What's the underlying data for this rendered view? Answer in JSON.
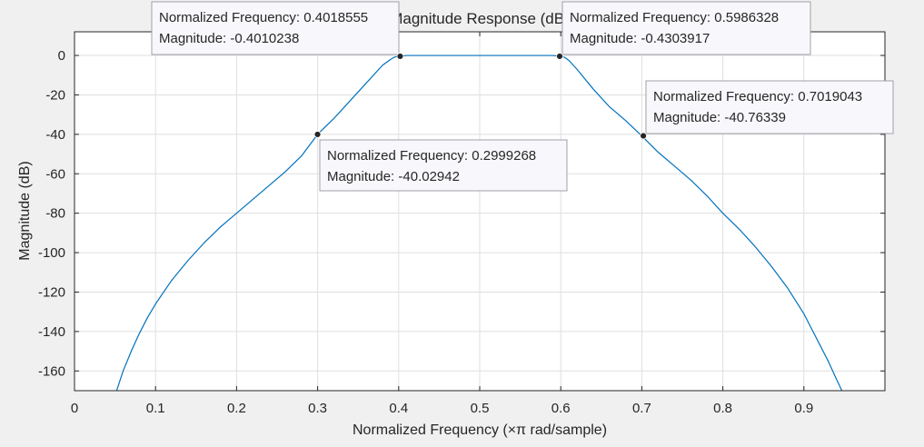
{
  "chart_data": {
    "type": "line",
    "title": "Magnitude Response (dB)",
    "xlabel": "Normalized Frequency (×π rad/sample)",
    "ylabel": "Magnitude (dB)",
    "xlim": [
      0,
      1
    ],
    "ylim": [
      -170,
      12
    ],
    "xticks": [
      0,
      0.1,
      0.2,
      0.3,
      0.4,
      0.5,
      0.6,
      0.7,
      0.8,
      0.9
    ],
    "xtick_labels": [
      "0",
      "0.1",
      "0.2",
      "0.3",
      "0.4",
      "0.5",
      "0.6",
      "0.7",
      "0.8",
      "0.9"
    ],
    "yticks": [
      0,
      -20,
      -40,
      -60,
      -80,
      -100,
      -120,
      -140,
      -160
    ],
    "ytick_labels": [
      "0",
      "-20",
      "-40",
      "-60",
      "-80",
      "-100",
      "-120",
      "-140",
      "-160"
    ],
    "grid": true,
    "line_color": "#0072bd",
    "series": [
      {
        "x": [
          0.052,
          0.06,
          0.07,
          0.08,
          0.09,
          0.1,
          0.12,
          0.14,
          0.16,
          0.18,
          0.2,
          0.22,
          0.24,
          0.26,
          0.28,
          0.3,
          0.32,
          0.34,
          0.36,
          0.38,
          0.39,
          0.395,
          0.4,
          0.41,
          0.45,
          0.5,
          0.55,
          0.59,
          0.6,
          0.605,
          0.61,
          0.62,
          0.64,
          0.66,
          0.68,
          0.7,
          0.72,
          0.74,
          0.76,
          0.78,
          0.8,
          0.82,
          0.84,
          0.86,
          0.88,
          0.9,
          0.91,
          0.92,
          0.93,
          0.94,
          0.948
        ],
        "y": [
          -170,
          -160,
          -150,
          -141,
          -133,
          -126,
          -114,
          -104,
          -95,
          -87,
          -80,
          -73,
          -66,
          -59,
          -51,
          -40,
          -32,
          -23,
          -14,
          -5,
          -2,
          -0.8,
          -0.4,
          0,
          0,
          0,
          0,
          0,
          -0.43,
          -1,
          -2.5,
          -7,
          -17,
          -26,
          -33,
          -40.8,
          -49,
          -56,
          -63,
          -71,
          -80,
          -88,
          -97,
          -107,
          -118,
          -131,
          -139,
          -147,
          -155,
          -164,
          -171
        ]
      }
    ],
    "datatips": [
      {
        "label": "Normalized Frequency: 0.4018555",
        "value": "Magnitude: -0.4010238",
        "x": 0.4018555,
        "y": -0.4010238
      },
      {
        "label": "Normalized Frequency: 0.5986328",
        "value": "Magnitude: -0.4303917",
        "x": 0.5986328,
        "y": -0.4303917
      },
      {
        "label": "Normalized Frequency: 0.2999268",
        "value": "Magnitude: -40.02942",
        "x": 0.2999268,
        "y": -40.02942
      },
      {
        "label": "Normalized Frequency: 0.7019043",
        "value": "Magnitude: -40.76339",
        "x": 0.7019043,
        "y": -40.76339
      }
    ]
  }
}
